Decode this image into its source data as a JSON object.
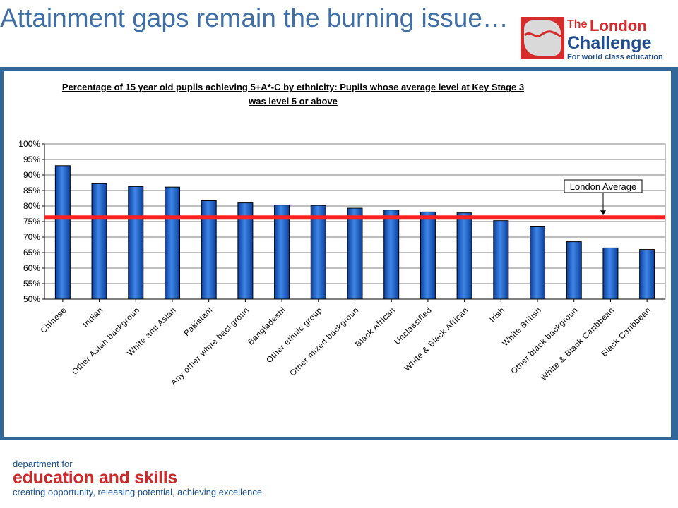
{
  "slide": {
    "title": "Attainment gaps remain the burning issue…"
  },
  "logo": {
    "the": "The",
    "london": "London",
    "challenge": "Challenge",
    "tagline": "For world class education"
  },
  "footer": {
    "line1": "department for",
    "line2": "education and skills",
    "line3": "creating opportunity, releasing potential, achieving excellence"
  },
  "colors": {
    "bar": "#1f5fbf",
    "average_line": "#ff2020",
    "panel": "#336699",
    "title": "#3f6fa4"
  },
  "chart_data": {
    "type": "bar",
    "title_line1": "Percentage of 15 year old pupils achieving 5+A*-C by ethnicity: Pupils whose average level at Key Stage 3",
    "title_line2": "was level 5 or above",
    "xlabel": "",
    "ylabel": "",
    "ylim": [
      50,
      100
    ],
    "yticks": [
      "100%",
      "95%",
      "90%",
      "85%",
      "80%",
      "75%",
      "70%",
      "65%",
      "60%",
      "55%",
      "50%"
    ],
    "grid": true,
    "categories": [
      "Chinese",
      "Indian",
      "Other Asian backgroun",
      "White and Asian",
      "Pakistani",
      "Any other white backgroun",
      "Bangladeshi",
      "Other ethnic group",
      "Other mixed backgroun",
      "Black African",
      "Unclassified",
      "White & Black African",
      "Irish",
      "White British",
      "Other black backgroun",
      "White & Black Caribbean",
      "Black Caribbean"
    ],
    "values": [
      93,
      87.2,
      86.3,
      86.1,
      81.7,
      81,
      80.3,
      80.2,
      79.3,
      78.7,
      78.1,
      77.8,
      75.3,
      73.3,
      68.5,
      66.5,
      66
    ],
    "reference_line": {
      "label": "London Average",
      "value": 76.3
    }
  }
}
